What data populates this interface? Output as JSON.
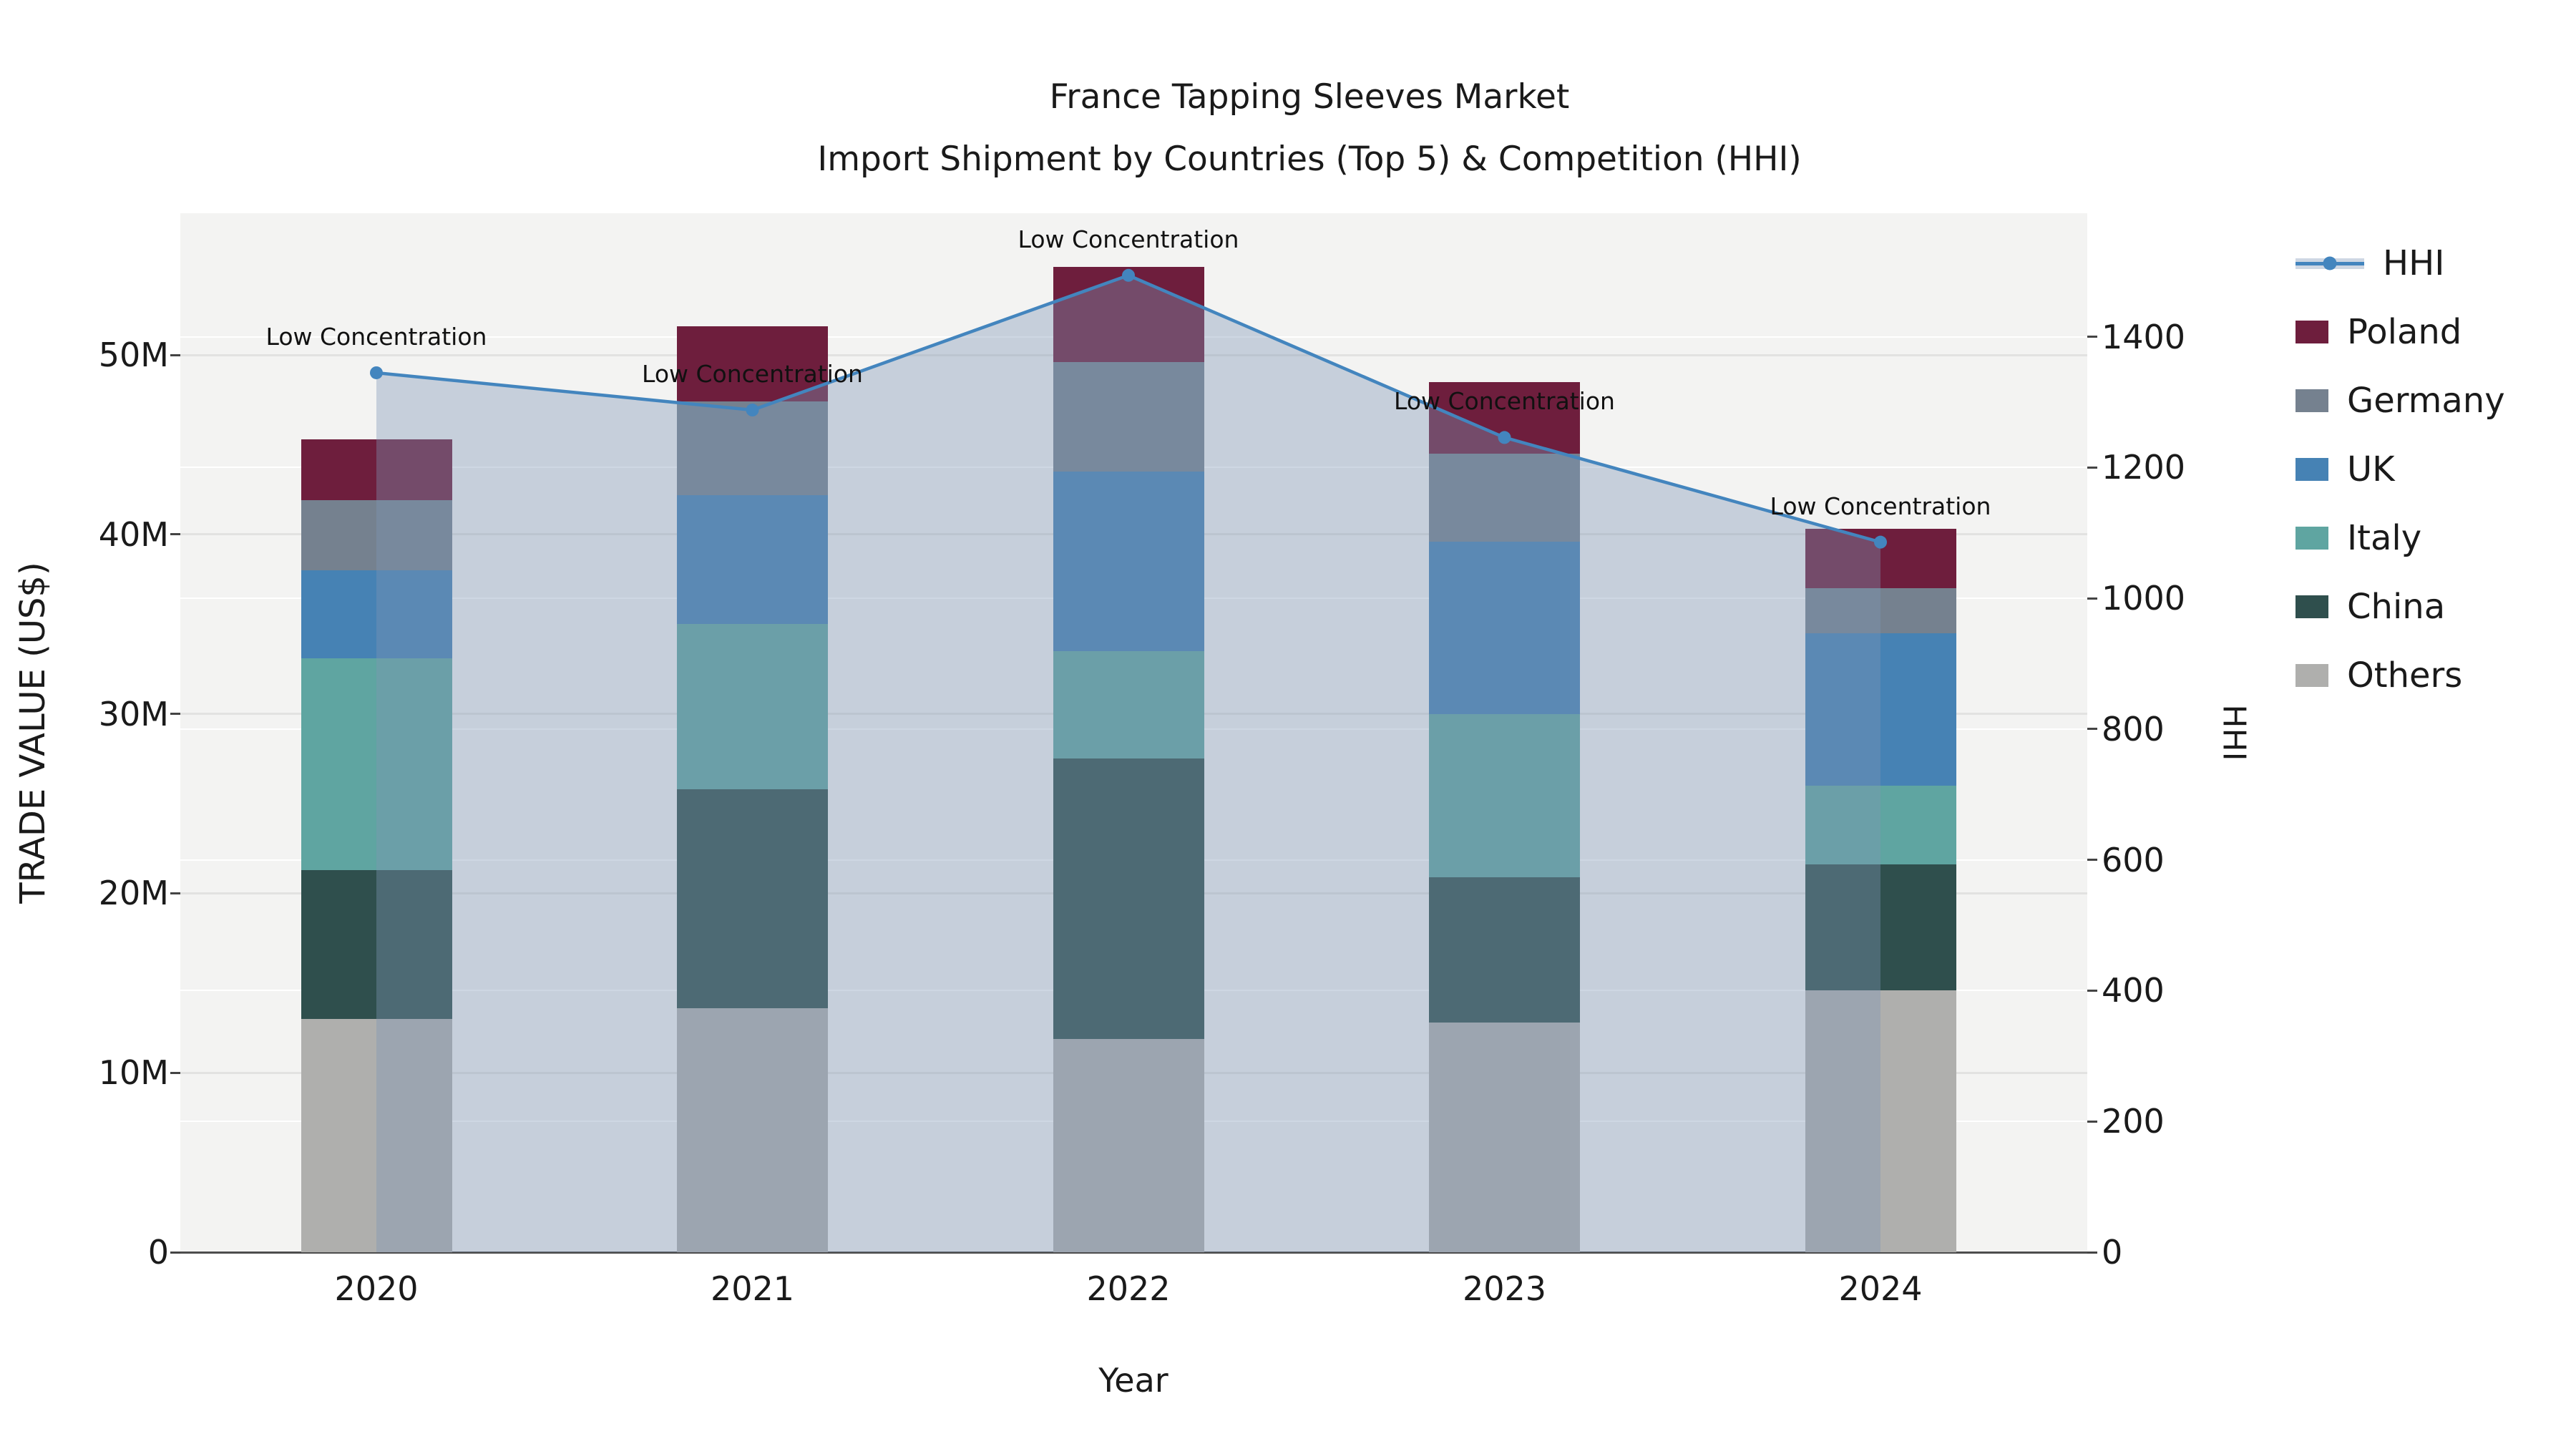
{
  "title": {
    "line1": "France Tapping Sleeves Market",
    "line2": "Import Shipment by Countries (Top 5) & Competition (HHI)"
  },
  "chart_data": {
    "type": "combo-stacked-bar-line",
    "x_label": "Year",
    "categories": [
      "2020",
      "2021",
      "2022",
      "2023",
      "2024"
    ],
    "left_axis": {
      "label": "TRADE VALUE (US$)",
      "unit": "millions US$",
      "ticks": [
        {
          "label": "0",
          "value": 0
        },
        {
          "label": "10M",
          "value": 10
        },
        {
          "label": "20M",
          "value": 20
        },
        {
          "label": "30M",
          "value": 30
        },
        {
          "label": "40M",
          "value": 40
        },
        {
          "label": "50M",
          "value": 50
        }
      ],
      "max": 57.9
    },
    "right_axis": {
      "label": "HHI",
      "ticks": [
        {
          "label": "0",
          "value": 0
        },
        {
          "label": "200",
          "value": 200
        },
        {
          "label": "400",
          "value": 400
        },
        {
          "label": "600",
          "value": 600
        },
        {
          "label": "800",
          "value": 800
        },
        {
          "label": "1000",
          "value": 1000
        },
        {
          "label": "1200",
          "value": 1200
        },
        {
          "label": "1400",
          "value": 1400
        }
      ],
      "max": 1589
    },
    "series": [
      {
        "name": "Others",
        "color": "#AFAFAD",
        "values": [
          13.0,
          13.6,
          11.9,
          12.8,
          14.6
        ]
      },
      {
        "name": "China",
        "color": "#2F4F4D",
        "values": [
          8.3,
          12.2,
          15.6,
          8.1,
          7.0
        ]
      },
      {
        "name": "Italy",
        "color": "#5FA5A1",
        "values": [
          11.8,
          9.2,
          6.0,
          9.1,
          4.4
        ]
      },
      {
        "name": "UK",
        "color": "#4682B4",
        "values": [
          4.9,
          7.2,
          10.0,
          9.6,
          8.5
        ]
      },
      {
        "name": "Germany",
        "color": "#75818F",
        "values": [
          3.9,
          5.2,
          6.1,
          4.9,
          2.5
        ]
      },
      {
        "name": "Poland",
        "color": "#6E1E3D",
        "values": [
          3.4,
          4.2,
          5.3,
          4.0,
          3.3
        ]
      }
    ],
    "bar_totals": [
      45.3,
      51.6,
      54.9,
      48.5,
      40.3
    ],
    "line": {
      "name": "HHI",
      "color": "#4385BE",
      "marker_color": "#4385BE",
      "band_color": "rgba(127,149,181,0.38)",
      "values": [
        1345,
        1288,
        1494,
        1246,
        1086
      ]
    },
    "annotations": [
      {
        "x": "2020",
        "text": "Low Concentration"
      },
      {
        "x": "2021",
        "text": "Low Concentration"
      },
      {
        "x": "2022",
        "text": "Low Concentration"
      },
      {
        "x": "2023",
        "text": "Low Concentration"
      },
      {
        "x": "2024",
        "text": "Low Concentration"
      }
    ],
    "legend_position": "right"
  },
  "legend": {
    "items": [
      {
        "label": "HHI",
        "type": "line",
        "color": "#4385BE"
      },
      {
        "label": "Poland",
        "type": "swatch",
        "color": "#6E1E3D"
      },
      {
        "label": "Germany",
        "type": "swatch",
        "color": "#75818F"
      },
      {
        "label": "UK",
        "type": "swatch",
        "color": "#4682B4"
      },
      {
        "label": "Italy",
        "type": "swatch",
        "color": "#5FA5A1"
      },
      {
        "label": "China",
        "type": "swatch",
        "color": "#2F4F4D"
      },
      {
        "label": "Others",
        "type": "swatch",
        "color": "#AFAFAD"
      }
    ]
  }
}
